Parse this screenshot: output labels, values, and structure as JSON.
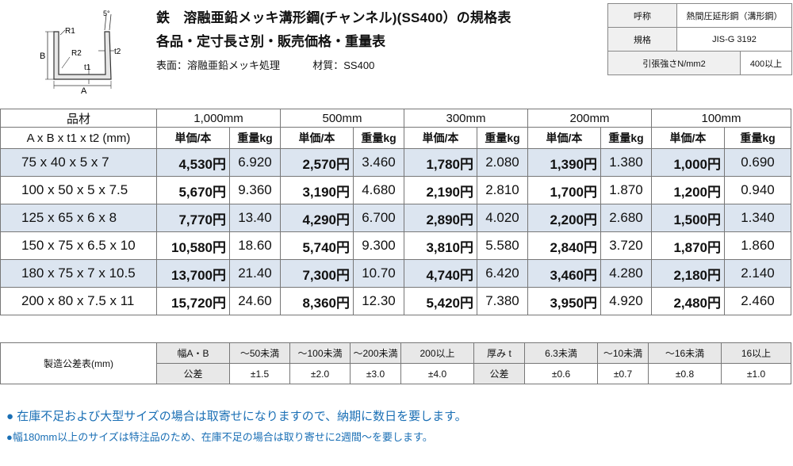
{
  "diagram": {
    "labels": {
      "angle": "5°",
      "r1": "R1",
      "r2": "R2",
      "t1": "t1",
      "t2": "t2",
      "a": "A",
      "b": "B"
    }
  },
  "header": {
    "title1": "鉄　溶融亜鉛メッキ溝形鋼(チャンネル)(SS400）の規格表",
    "title2": "各品・定寸長さ別・販売価格・重量表",
    "surface": "表面：溶融亜鉛メッキ処理",
    "material": "材質：SS400"
  },
  "spec": {
    "rows": [
      {
        "label": "呼称",
        "value": "熱間圧延形鋼（溝形鋼）"
      },
      {
        "label": "規格",
        "value": "JIS-G 3192"
      }
    ],
    "tensile_label": "引張強さN/mm2",
    "tensile_value": "400以上"
  },
  "price_table": {
    "item_header": "品材",
    "item_subheader": "A x B x t1 x t2 (mm)",
    "lengths": [
      "1,000mm",
      "500mm",
      "300mm",
      "200mm",
      "100mm"
    ],
    "price_col": "単価/本",
    "weight_col": "重量kg",
    "rows": [
      {
        "item": "75 x 40 x 5 x 7",
        "cells": [
          [
            "4,530円",
            "6.920"
          ],
          [
            "2,570円",
            "3.460"
          ],
          [
            "1,780円",
            "2.080"
          ],
          [
            "1,390円",
            "1.380"
          ],
          [
            "1,000円",
            "0.690"
          ]
        ]
      },
      {
        "item": "100 x 50 x 5 x 7.5",
        "cells": [
          [
            "5,670円",
            "9.360"
          ],
          [
            "3,190円",
            "4.680"
          ],
          [
            "2,190円",
            "2.810"
          ],
          [
            "1,700円",
            "1.870"
          ],
          [
            "1,200円",
            "0.940"
          ]
        ]
      },
      {
        "item": "125 x 65 x 6 x 8",
        "cells": [
          [
            "7,770円",
            "13.40"
          ],
          [
            "4,290円",
            "6.700"
          ],
          [
            "2,890円",
            "4.020"
          ],
          [
            "2,200円",
            "2.680"
          ],
          [
            "1,500円",
            "1.340"
          ]
        ]
      },
      {
        "item": "150 x 75 x 6.5 x 10",
        "cells": [
          [
            "10,580円",
            "18.60"
          ],
          [
            "5,740円",
            "9.300"
          ],
          [
            "3,810円",
            "5.580"
          ],
          [
            "2,840円",
            "3.720"
          ],
          [
            "1,870円",
            "1.860"
          ]
        ]
      },
      {
        "item": "180 x 75 x 7 x 10.5",
        "cells": [
          [
            "13,700円",
            "21.40"
          ],
          [
            "7,300円",
            "10.70"
          ],
          [
            "4,740円",
            "6.420"
          ],
          [
            "3,460円",
            "4.280"
          ],
          [
            "2,180円",
            "2.140"
          ]
        ]
      },
      {
        "item": "200 x 80 x 7.5 x 11",
        "cells": [
          [
            "15,720円",
            "24.60"
          ],
          [
            "8,360円",
            "12.30"
          ],
          [
            "5,420円",
            "7.380"
          ],
          [
            "3,950円",
            "4.920"
          ],
          [
            "2,480円",
            "2.460"
          ]
        ]
      }
    ]
  },
  "tolerance": {
    "title": "製造公差表(mm)",
    "width_label": "幅A・B",
    "width_ranges": [
      "～50未満",
      "～100未満",
      "～200未満",
      "200以上"
    ],
    "thick_label": "厚み t",
    "thick_ranges": [
      "6.3未満",
      "～10未満",
      "～16未満",
      "16以上"
    ],
    "tol_label": "公差",
    "width_values": [
      "±1.5",
      "±2.0",
      "±3.0",
      "±4.0"
    ],
    "thick_values": [
      "±0.6",
      "±0.7",
      "±0.8",
      "±1.0"
    ]
  },
  "notes": {
    "note1": "● 在庫不足および大型サイズの場合は取寄せになりますので、納期に数日を要します。",
    "note2": "●幅180mm以上のサイズは特注品のため、在庫不足の場合は取り寄せに2週間～を要します。"
  },
  "colors": {
    "row_highlight": "#dce5f0",
    "note_blue": "#1a6fb5",
    "header_gray": "#e8e8e8"
  }
}
